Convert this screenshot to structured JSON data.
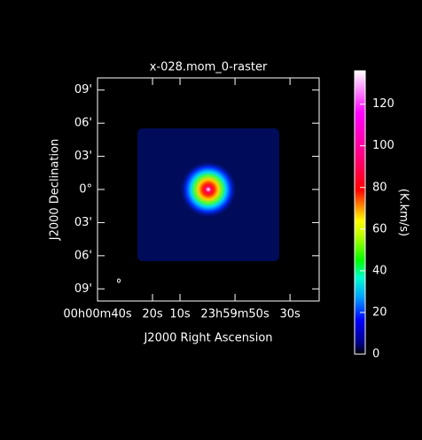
{
  "chart_data": {
    "type": "raster",
    "title": "x-028.mom_0-raster",
    "x_label": "J2000 Right Ascension",
    "y_label": "J2000 Declination",
    "colorbar_label": "(K.km/s)",
    "xlim": [
      40,
      -40.6
    ],
    "xticks": [
      {
        "value": 40,
        "label": "00h00m40s"
      },
      {
        "value": 20,
        "label": "20s"
      },
      {
        "value": 10,
        "label": "10s"
      },
      {
        "value": -10,
        "label": "23h59m50s"
      },
      {
        "value": -30,
        "label": "30s"
      }
    ],
    "ylim": [
      -10.1,
      10.1
    ],
    "yticks": [
      {
        "value": 9,
        "label": "09'"
      },
      {
        "value": 6,
        "label": "06'"
      },
      {
        "value": 3,
        "label": "03'"
      },
      {
        "value": 0,
        "label": "0°"
      },
      {
        "value": -3,
        "label": "03'"
      },
      {
        "value": -6,
        "label": "06'"
      },
      {
        "value": -9,
        "label": "09'"
      }
    ],
    "clim": [
      0,
      136
    ],
    "cticks": [
      0,
      20,
      40,
      60,
      80,
      100,
      120
    ]
  }
}
